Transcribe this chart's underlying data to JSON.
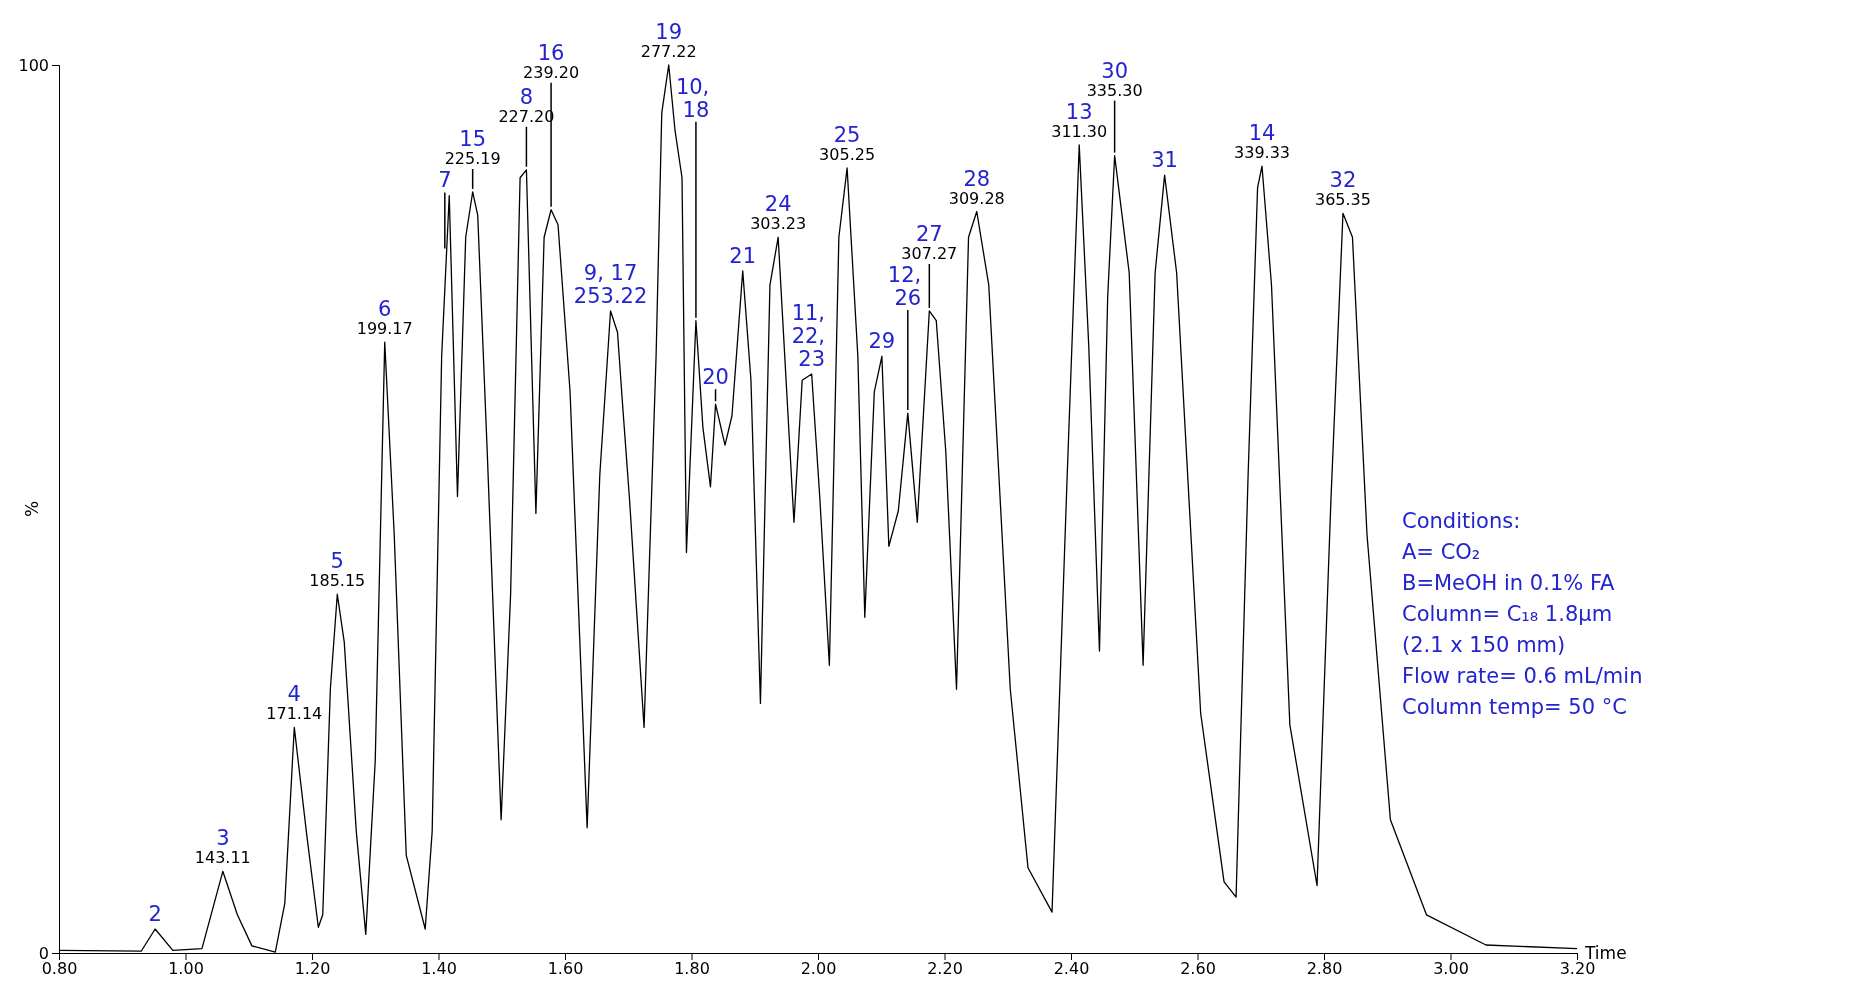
{
  "chart_data": {
    "type": "line",
    "xlabel": "Time",
    "ylabel": "%",
    "xlim": [
      0.8,
      3.2
    ],
    "ylim": [
      0,
      100
    ],
    "xticks": [
      {
        "value": 0.8,
        "label": "0.80"
      },
      {
        "value": 1.0,
        "label": "1.00"
      },
      {
        "value": 1.2,
        "label": "1.20"
      },
      {
        "value": 1.4,
        "label": "1.40"
      },
      {
        "value": 1.6,
        "label": "1.60"
      },
      {
        "value": 1.8,
        "label": "1.80"
      },
      {
        "value": 2.0,
        "label": "2.00"
      },
      {
        "value": 2.2,
        "label": "2.20"
      },
      {
        "value": 2.4,
        "label": "2.40"
      },
      {
        "value": 2.6,
        "label": "2.60"
      },
      {
        "value": 2.8,
        "label": "2.80"
      },
      {
        "value": 3.0,
        "label": "3.00"
      },
      {
        "value": 3.2,
        "label": "3.20"
      }
    ],
    "yticks": [
      0,
      100
    ],
    "grid": false,
    "marker": "none",
    "line_style": "solid",
    "series": [
      {
        "color": "#000000",
        "x": [
          0.8,
          0.93,
          0.952,
          0.98,
          1.026,
          1.059,
          1.082,
          1.105,
          1.142,
          1.157,
          1.172,
          1.191,
          1.21,
          1.217,
          1.229,
          1.24,
          1.251,
          1.27,
          1.285,
          1.3,
          1.315,
          1.33,
          1.349,
          1.379,
          1.39,
          1.405,
          1.417,
          1.43,
          1.443,
          1.454,
          1.462,
          1.477,
          1.499,
          1.514,
          1.529,
          1.539,
          1.554,
          1.567,
          1.578,
          1.589,
          1.608,
          1.635,
          1.655,
          1.672,
          1.683,
          1.691,
          1.702,
          1.725,
          1.744,
          1.753,
          1.764,
          1.774,
          1.785,
          1.792,
          1.807,
          1.818,
          1.83,
          1.838,
          1.853,
          1.864,
          1.881,
          1.894,
          1.909,
          1.924,
          1.937,
          1.962,
          1.975,
          1.99,
          2.003,
          2.018,
          2.033,
          2.046,
          2.063,
          2.074,
          2.089,
          2.101,
          2.112,
          2.127,
          2.142,
          2.157,
          2.176,
          2.187,
          2.202,
          2.219,
          2.238,
          2.251,
          2.27,
          2.304,
          2.332,
          2.37,
          2.394,
          2.413,
          2.428,
          2.445,
          2.458,
          2.469,
          2.492,
          2.514,
          2.533,
          2.548,
          2.567,
          2.605,
          2.642,
          2.661,
          2.68,
          2.695,
          2.702,
          2.717,
          2.746,
          2.789,
          2.811,
          2.83,
          2.845,
          2.868,
          2.905,
          2.962,
          3.056,
          3.2
        ],
        "values": [
          0.3,
          0.2,
          2.7,
          0.3,
          0.5,
          9.2,
          4.3,
          0.8,
          0.1,
          5.6,
          25.4,
          13.7,
          2.9,
          4.3,
          29.7,
          40.4,
          35,
          13.7,
          2.1,
          21.7,
          68.8,
          47.1,
          11,
          2.7,
          13.7,
          67.2,
          85.3,
          51.4,
          80.6,
          85.7,
          83.1,
          56.5,
          15,
          40.4,
          87.3,
          88.2,
          49.5,
          80.6,
          83.7,
          82,
          63.2,
          14.1,
          53.8,
          72.3,
          69.9,
          61.8,
          51.1,
          25.4,
          67.2,
          94.6,
          100,
          92.6,
          87.3,
          45.1,
          71.2,
          59.2,
          52.5,
          61.8,
          57.2,
          60.5,
          76.8,
          64.5,
          28.1,
          75.2,
          80.6,
          48.5,
          64.5,
          65.2,
          51.1,
          32.4,
          80.6,
          88.4,
          67.2,
          37.8,
          63.2,
          67.2,
          45.8,
          49.8,
          60.8,
          48.5,
          72.3,
          71.2,
          56.5,
          29.7,
          80.6,
          83.5,
          75.2,
          29.7,
          9.6,
          4.6,
          53.8,
          91,
          68.5,
          34,
          73.9,
          89.8,
          76.6,
          32.4,
          76.6,
          87.6,
          76.6,
          27,
          8,
          6.3,
          53.8,
          86.2,
          88.6,
          75.2,
          25.7,
          7.6,
          51.1,
          83.3,
          80.6,
          47.1,
          15,
          4.3,
          0.9,
          0.5
        ]
      }
    ],
    "annotations": [
      {
        "text": "2",
        "x": 0.952,
        "y": 2.7
      },
      {
        "text": "3",
        "x": 1.059,
        "y": 9.2
      },
      {
        "text": "143.11",
        "x": 1.059,
        "y": 9.2
      },
      {
        "text": "4",
        "x": 1.172,
        "y": 25.4
      },
      {
        "text": "171.14",
        "x": 1.172,
        "y": 25.4
      },
      {
        "text": "5",
        "x": 1.24,
        "y": 40.4
      },
      {
        "text": "185.15",
        "x": 1.24,
        "y": 40.4
      },
      {
        "text": "6",
        "x": 1.315,
        "y": 68.8
      },
      {
        "text": "199.17",
        "x": 1.315,
        "y": 68.8
      },
      {
        "text": "7",
        "x": 1.41,
        "y": 79
      },
      {
        "text": "15",
        "x": 1.454,
        "y": 85.7
      },
      {
        "text": "225.19",
        "x": 1.454,
        "y": 85.7
      },
      {
        "text": "8",
        "x": 1.539,
        "y": 88.2
      },
      {
        "text": "227.20",
        "x": 1.539,
        "y": 88.2
      },
      {
        "text": "16",
        "x": 1.578,
        "y": 83.7
      },
      {
        "text": "239.20",
        "x": 1.578,
        "y": 83.7
      },
      {
        "text": "9, 17",
        "x": 1.672,
        "y": 72.3
      },
      {
        "text": "253.22",
        "x": 1.672,
        "y": 72.3
      },
      {
        "text": "19",
        "x": 1.764,
        "y": 100
      },
      {
        "text": "277.22",
        "x": 1.764,
        "y": 100
      },
      {
        "text": "10, 18",
        "x": 1.807,
        "y": 71.2
      },
      {
        "text": "20",
        "x": 1.838,
        "y": 61.8
      },
      {
        "text": "21",
        "x": 1.881,
        "y": 76.8
      },
      {
        "text": "24",
        "x": 1.937,
        "y": 80.6
      },
      {
        "text": "303.23",
        "x": 1.937,
        "y": 80.6
      },
      {
        "text": "11, 22, 23",
        "x": 1.99,
        "y": 65.2
      },
      {
        "text": "25",
        "x": 2.046,
        "y": 88.4
      },
      {
        "text": "305.25",
        "x": 2.046,
        "y": 88.4
      },
      {
        "text": "29",
        "x": 2.101,
        "y": 67.2
      },
      {
        "text": "12, 26",
        "x": 2.142,
        "y": 60.8
      },
      {
        "text": "27",
        "x": 2.176,
        "y": 72.3
      },
      {
        "text": "307.27",
        "x": 2.176,
        "y": 72.3
      },
      {
        "text": "28",
        "x": 2.251,
        "y": 83.5
      },
      {
        "text": "309.28",
        "x": 2.251,
        "y": 83.5
      },
      {
        "text": "13",
        "x": 2.413,
        "y": 91
      },
      {
        "text": "311.30",
        "x": 2.413,
        "y": 91
      },
      {
        "text": "30",
        "x": 2.469,
        "y": 89.8
      },
      {
        "text": "335.30",
        "x": 2.469,
        "y": 89.8
      },
      {
        "text": "31",
        "x": 2.548,
        "y": 87.6
      },
      {
        "text": "14",
        "x": 2.702,
        "y": 88.6
      },
      {
        "text": "339.33",
        "x": 2.702,
        "y": 88.6
      },
      {
        "text": "32",
        "x": 2.83,
        "y": 83.3
      },
      {
        "text": "365.35",
        "x": 2.83,
        "y": 83.3
      },
      "Conditions:",
      "A= CO₂",
      "B=MeOH in 0.1% FA",
      "Column= C₁₈ 1.8µm",
      "(2.1 x 150 mm)",
      "Flow rate= 0.6 mL/min",
      "Column temp= 50 °C"
    ]
  }
}
